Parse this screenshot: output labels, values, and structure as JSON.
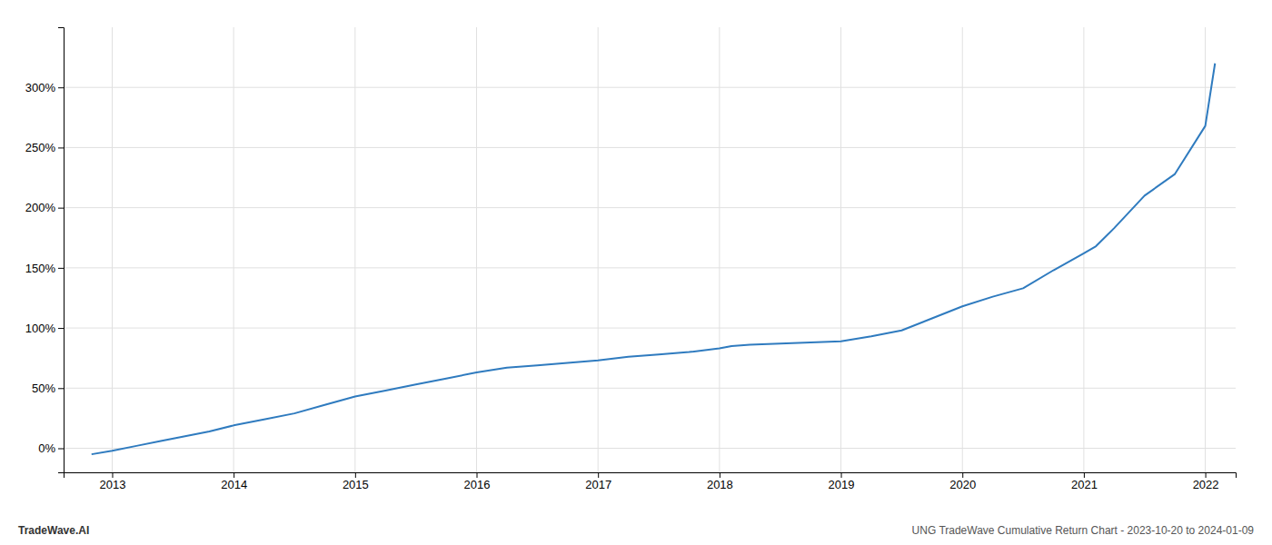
{
  "chart_data": {
    "type": "line",
    "x": [
      2012.83,
      2013.0,
      2013.2,
      2013.4,
      2013.6,
      2013.8,
      2014.0,
      2014.25,
      2014.5,
      2014.75,
      2015.0,
      2015.25,
      2015.5,
      2015.75,
      2016.0,
      2016.25,
      2016.5,
      2016.75,
      2017.0,
      2017.25,
      2017.5,
      2017.75,
      2018.0,
      2018.1,
      2018.25,
      2018.5,
      2018.75,
      2019.0,
      2019.25,
      2019.5,
      2019.75,
      2020.0,
      2020.25,
      2020.5,
      2020.75,
      2021.0,
      2021.1,
      2021.25,
      2021.5,
      2021.75,
      2022.0,
      2022.08
    ],
    "values": [
      -5,
      -2,
      2,
      6,
      10,
      14,
      19,
      24,
      29,
      36,
      43,
      48,
      53,
      58,
      63,
      67,
      69,
      71,
      73,
      76,
      78,
      80,
      83,
      85,
      86,
      87,
      88,
      89,
      93,
      98,
      108,
      118,
      126,
      133,
      148,
      162,
      168,
      183,
      210,
      228,
      268,
      320
    ],
    "color": "#2f7bbf",
    "xlim": [
      2012.6,
      2022.25
    ],
    "xticks": [
      2013,
      2014,
      2015,
      2016,
      2017,
      2018,
      2019,
      2020,
      2021,
      2022
    ],
    "ylim": [
      -20,
      350
    ],
    "yticks": [
      {
        "value": 0,
        "label": "0%"
      },
      {
        "value": 50,
        "label": "50%"
      },
      {
        "value": 100,
        "label": "100%"
      },
      {
        "value": 150,
        "label": "150%"
      },
      {
        "value": 200,
        "label": "200%"
      },
      {
        "value": 250,
        "label": "250%"
      },
      {
        "value": 300,
        "label": "300%"
      }
    ],
    "grid": true,
    "annotations": [
      "TradeWave.AI",
      "UNG TradeWave Cumulative Return Chart - 2023-10-20 to 2024-01-09"
    ]
  }
}
